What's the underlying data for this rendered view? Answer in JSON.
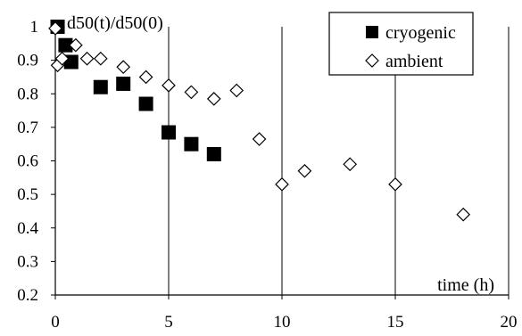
{
  "chart_data": {
    "type": "scatter",
    "ylabel": "d50(t)/d50(0)",
    "xlabel": "time (h)",
    "xlim": [
      0,
      20
    ],
    "ylim": [
      0.2,
      1
    ],
    "x_ticks": [
      0,
      5,
      10,
      15,
      20
    ],
    "y_ticks": [
      0.2,
      0.3,
      0.4,
      0.5,
      0.6,
      0.7,
      0.8,
      0.9,
      1
    ],
    "x_tick_labels": [
      "0",
      "5",
      "10",
      "15",
      "20"
    ],
    "y_tick_labels": [
      "0.2",
      "0.3",
      "0.4",
      "0.5",
      "0.6",
      "0.7",
      "0.8",
      "0.9",
      "1"
    ],
    "grid": "vertical gridlines at x ticks",
    "legend_position": "top-right",
    "series": [
      {
        "name": "cryogenic",
        "marker": "filled-square",
        "color": "#000000",
        "x": [
          0.1,
          0.45,
          0.7,
          2,
          3,
          4,
          5,
          6,
          7
        ],
        "y": [
          1.0,
          0.945,
          0.895,
          0.82,
          0.83,
          0.77,
          0.685,
          0.65,
          0.62
        ]
      },
      {
        "name": "ambient",
        "marker": "open-diamond",
        "color": "#000000",
        "x": [
          0,
          0.1,
          0.3,
          0.9,
          1.4,
          2,
          3,
          4,
          5,
          6,
          7,
          8,
          9,
          10,
          11,
          13,
          15,
          18
        ],
        "y": [
          0.995,
          0.885,
          0.905,
          0.945,
          0.905,
          0.905,
          0.88,
          0.85,
          0.825,
          0.805,
          0.785,
          0.81,
          0.665,
          0.53,
          0.57,
          0.59,
          0.53,
          0.44
        ]
      }
    ]
  }
}
